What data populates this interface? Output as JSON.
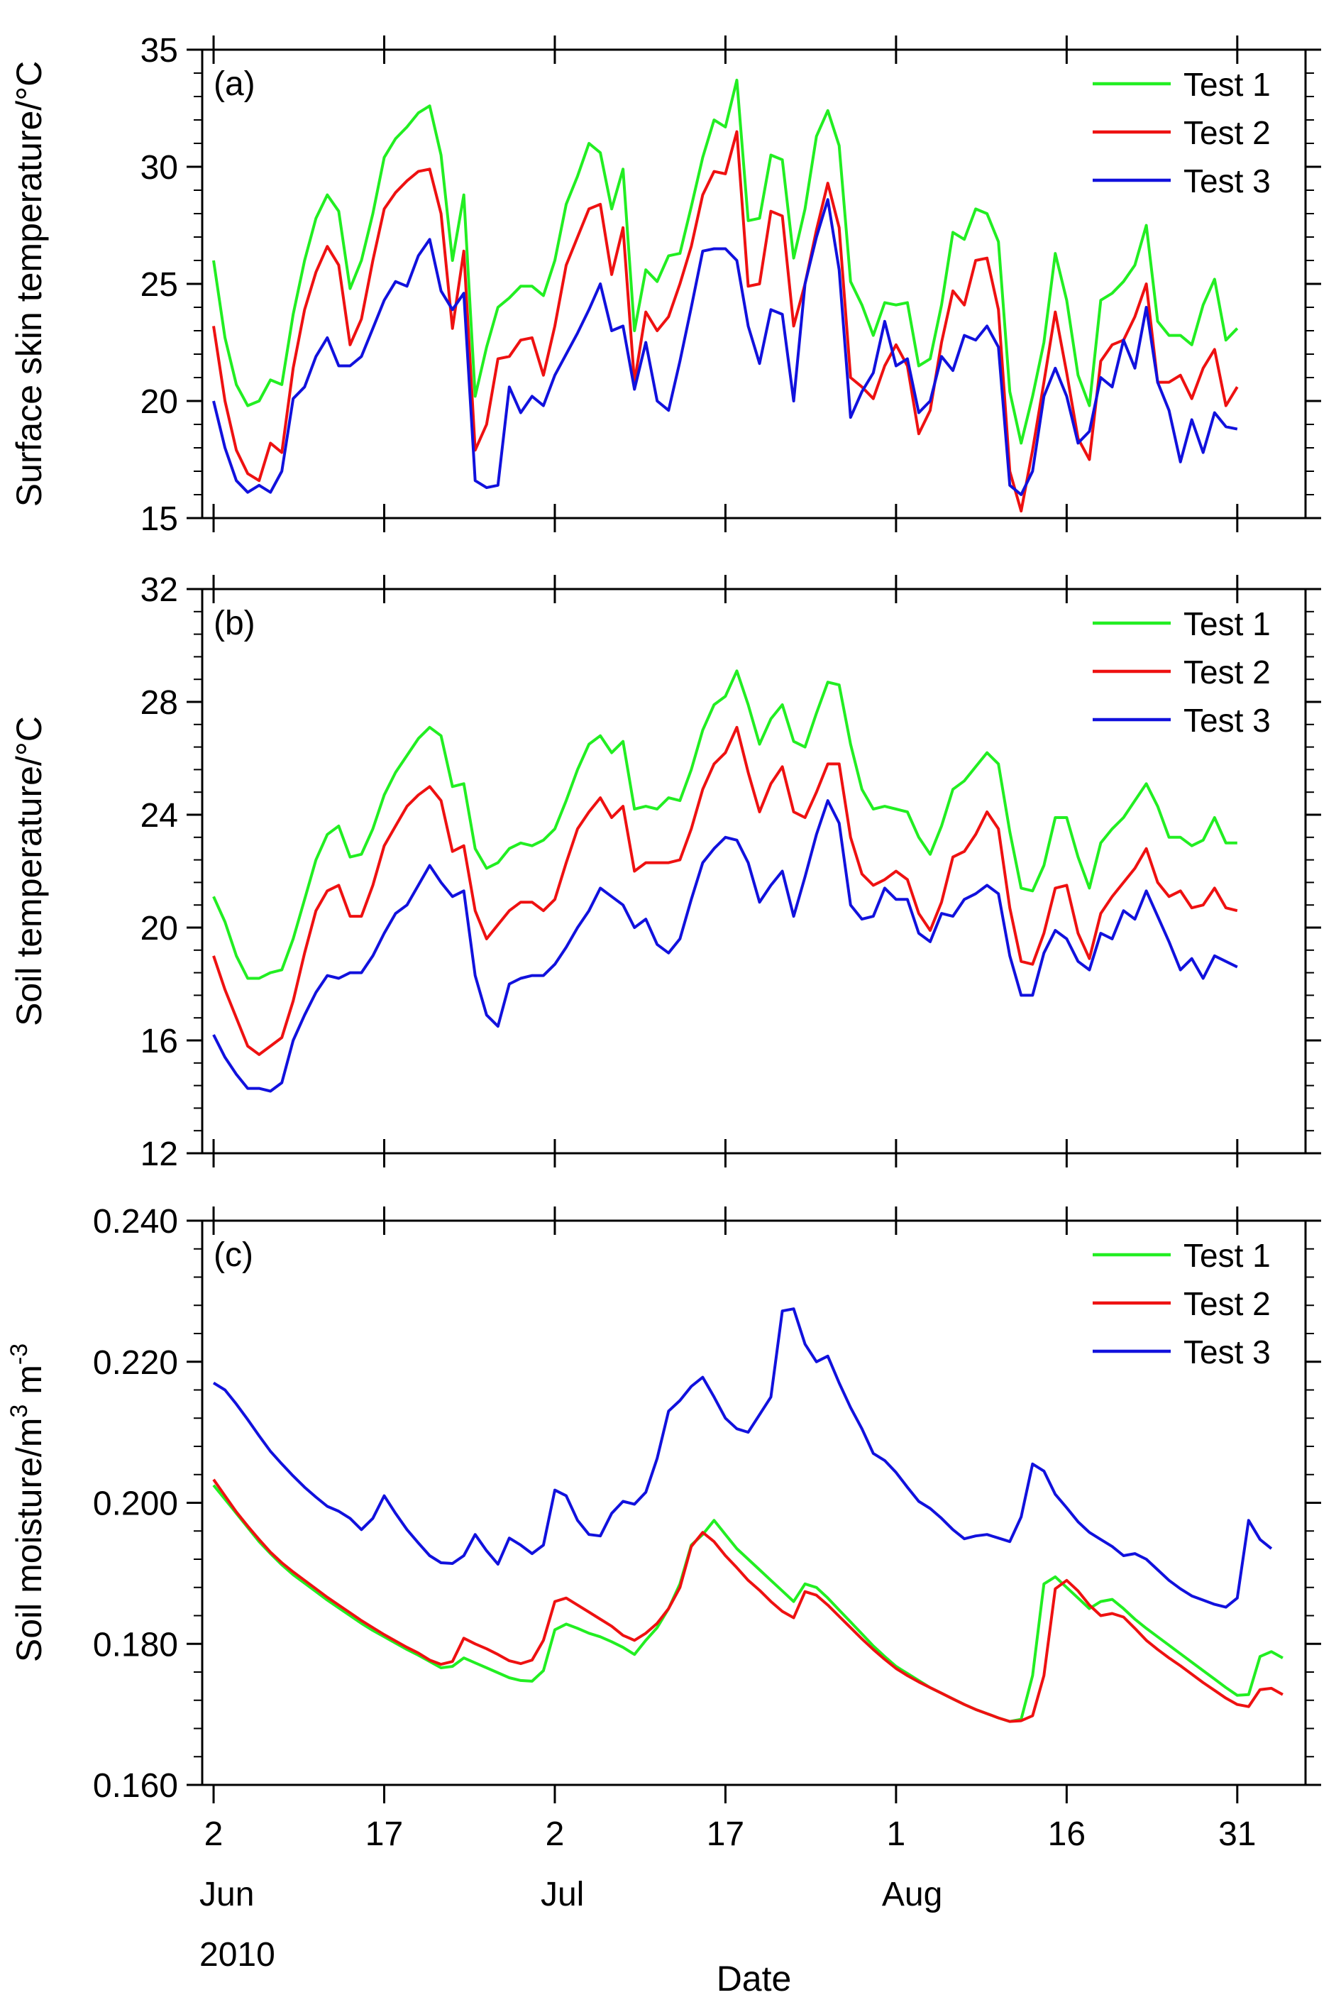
{
  "figure": {
    "xlabel": "Date",
    "x_ticks": [
      {
        "day": 0,
        "label": "2",
        "sub1": "Jun",
        "sub2": "2010"
      },
      {
        "day": 15,
        "label": "17",
        "sub1": "",
        "sub2": ""
      },
      {
        "day": 30,
        "label": "2",
        "sub1": "Jul",
        "sub2": ""
      },
      {
        "day": 45,
        "label": "17",
        "sub1": "",
        "sub2": ""
      },
      {
        "day": 60,
        "label": "1",
        "sub1": "Aug",
        "sub2": ""
      },
      {
        "day": 75,
        "label": "16",
        "sub1": "",
        "sub2": ""
      },
      {
        "day": 90,
        "label": "31",
        "sub1": "",
        "sub2": ""
      }
    ],
    "colors": {
      "Test 1": "#22ee22",
      "Test 2": "#ee1111",
      "Test 3": "#1111dd"
    }
  },
  "chart_data": [
    {
      "type": "line",
      "panel_label": "(a)",
      "ylabel": "Surface skin temperature/°C",
      "ylim": [
        15,
        35
      ],
      "yticks": [
        15,
        20,
        25,
        30,
        35
      ],
      "ytick_labels": [
        "15",
        "20",
        "25",
        "30",
        "35"
      ],
      "xlim": [
        -1,
        96
      ],
      "legend": "top-right",
      "series": [
        {
          "name": "Test 1",
          "values": [
            26.0,
            22.7,
            20.7,
            19.8,
            20.0,
            20.9,
            20.7,
            23.7,
            26.0,
            27.8,
            28.8,
            28.1,
            24.8,
            26.0,
            28.0,
            30.4,
            31.2,
            31.7,
            32.3,
            32.6,
            30.5,
            26.0,
            28.8,
            20.2,
            22.3,
            24.0,
            24.4,
            24.9,
            24.9,
            24.5,
            26.0,
            28.4,
            29.6,
            31.0,
            30.6,
            28.2,
            29.9,
            23.0,
            25.6,
            25.1,
            26.2,
            26.3,
            28.3,
            30.4,
            32.0,
            31.7,
            33.7,
            27.7,
            27.8,
            30.5,
            30.3,
            26.1,
            28.2,
            31.3,
            32.4,
            30.9,
            25.1,
            24.1,
            22.8,
            24.2,
            24.1,
            24.2,
            21.5,
            21.8,
            24.1,
            27.2,
            26.9,
            28.2,
            28.0,
            26.8,
            20.4,
            18.2,
            20.2,
            22.5,
            26.3,
            24.3,
            21.1,
            19.8,
            24.3,
            24.6,
            25.1,
            25.8,
            27.5,
            23.4,
            22.8,
            22.8,
            22.4,
            24.1,
            25.2,
            22.6,
            23.1
          ]
        },
        {
          "name": "Test 2",
          "values": [
            23.2,
            20.0,
            17.9,
            16.9,
            16.6,
            18.2,
            17.8,
            21.4,
            23.9,
            25.5,
            26.6,
            25.8,
            22.4,
            23.5,
            26.0,
            28.2,
            28.9,
            29.4,
            29.8,
            29.9,
            28.0,
            23.1,
            26.4,
            17.9,
            19.0,
            21.8,
            21.9,
            22.6,
            22.7,
            21.1,
            23.2,
            25.8,
            27.0,
            28.2,
            28.4,
            25.4,
            27.4,
            20.8,
            23.8,
            23.0,
            23.6,
            25.0,
            26.6,
            28.8,
            29.8,
            29.7,
            31.5,
            24.9,
            25.0,
            28.1,
            27.9,
            23.2,
            25.0,
            27.3,
            29.3,
            27.4,
            21.0,
            20.6,
            20.1,
            21.5,
            22.4,
            21.5,
            18.6,
            19.6,
            22.5,
            24.7,
            24.1,
            26.0,
            26.1,
            23.9,
            17.0,
            15.3,
            17.9,
            20.8,
            23.8,
            21.2,
            18.4,
            17.5,
            21.7,
            22.4,
            22.6,
            23.6,
            25.0,
            20.8,
            20.8,
            21.1,
            20.1,
            21.4,
            22.2,
            19.8,
            20.6
          ]
        },
        {
          "name": "Test 3",
          "values": [
            20.0,
            18.0,
            16.6,
            16.1,
            16.4,
            16.1,
            17.0,
            20.1,
            20.6,
            21.9,
            22.7,
            21.5,
            21.5,
            21.9,
            23.1,
            24.3,
            25.1,
            24.9,
            26.2,
            26.9,
            24.7,
            23.9,
            24.6,
            16.6,
            16.3,
            16.4,
            20.6,
            19.5,
            20.2,
            19.8,
            21.1,
            22.0,
            22.9,
            23.9,
            25.0,
            23.0,
            23.2,
            20.5,
            22.5,
            20.0,
            19.6,
            21.7,
            24.0,
            26.4,
            26.5,
            26.5,
            26.0,
            23.2,
            21.6,
            23.9,
            23.7,
            20.0,
            25.0,
            27.0,
            28.6,
            25.6,
            19.3,
            20.4,
            21.2,
            23.4,
            21.5,
            21.8,
            19.5,
            20.0,
            21.9,
            21.3,
            22.8,
            22.6,
            23.2,
            22.3,
            16.4,
            16.0,
            17.0,
            20.2,
            21.4,
            20.2,
            18.2,
            18.7,
            21.0,
            20.6,
            22.6,
            21.4,
            24.0,
            20.8,
            19.6,
            17.4,
            19.2,
            17.8,
            19.5,
            18.9,
            18.8
          ]
        }
      ]
    },
    {
      "type": "line",
      "panel_label": "(b)",
      "ylabel": "Soil temperature/°C",
      "ylim": [
        12,
        32
      ],
      "yticks": [
        12,
        16,
        20,
        24,
        28,
        32
      ],
      "ytick_labels": [
        "12",
        "16",
        "20",
        "24",
        "28",
        "32"
      ],
      "xlim": [
        -1,
        96
      ],
      "legend": "top-right",
      "series": [
        {
          "name": "Test 1",
          "values": [
            21.1,
            20.2,
            19.0,
            18.2,
            18.2,
            18.4,
            18.5,
            19.6,
            21.0,
            22.4,
            23.3,
            23.6,
            22.5,
            22.6,
            23.5,
            24.7,
            25.5,
            26.1,
            26.7,
            27.1,
            26.8,
            25.0,
            25.1,
            22.8,
            22.1,
            22.3,
            22.8,
            23.0,
            22.9,
            23.1,
            23.5,
            24.5,
            25.6,
            26.5,
            26.8,
            26.2,
            26.6,
            24.2,
            24.3,
            24.2,
            24.6,
            24.5,
            25.6,
            27.0,
            27.9,
            28.2,
            29.1,
            27.9,
            26.5,
            27.4,
            27.9,
            26.6,
            26.4,
            27.6,
            28.7,
            28.6,
            26.5,
            24.9,
            24.2,
            24.3,
            24.2,
            24.1,
            23.2,
            22.6,
            23.6,
            24.9,
            25.2,
            25.7,
            26.2,
            25.8,
            23.4,
            21.4,
            21.3,
            22.2,
            23.9,
            23.9,
            22.5,
            21.4,
            23.0,
            23.5,
            23.9,
            24.5,
            25.1,
            24.3,
            23.2,
            23.2,
            22.9,
            23.1,
            23.9,
            23.0,
            23.0
          ]
        },
        {
          "name": "Test 2",
          "values": [
            19.0,
            17.8,
            16.8,
            15.8,
            15.5,
            15.8,
            16.1,
            17.4,
            19.1,
            20.6,
            21.3,
            21.5,
            20.4,
            20.4,
            21.5,
            22.9,
            23.6,
            24.3,
            24.7,
            25.0,
            24.5,
            22.7,
            22.9,
            20.6,
            19.6,
            20.1,
            20.6,
            20.9,
            20.9,
            20.6,
            21.0,
            22.3,
            23.5,
            24.1,
            24.6,
            23.9,
            24.3,
            22.0,
            22.3,
            22.3,
            22.3,
            22.4,
            23.5,
            24.9,
            25.8,
            26.2,
            27.1,
            25.5,
            24.1,
            25.1,
            25.7,
            24.1,
            23.9,
            24.8,
            25.8,
            25.8,
            23.2,
            21.9,
            21.5,
            21.7,
            22.0,
            21.7,
            20.5,
            19.9,
            20.9,
            22.5,
            22.7,
            23.3,
            24.1,
            23.5,
            20.7,
            18.8,
            18.7,
            19.8,
            21.4,
            21.5,
            19.8,
            18.9,
            20.5,
            21.1,
            21.6,
            22.1,
            22.8,
            21.6,
            21.1,
            21.3,
            20.7,
            20.8,
            21.4,
            20.7,
            20.6
          ]
        },
        {
          "name": "Test 3",
          "values": [
            16.2,
            15.4,
            14.8,
            14.3,
            14.3,
            14.2,
            14.5,
            16.0,
            16.9,
            17.7,
            18.3,
            18.2,
            18.4,
            18.4,
            19.0,
            19.8,
            20.5,
            20.8,
            21.5,
            22.2,
            21.6,
            21.1,
            21.3,
            18.3,
            16.9,
            16.5,
            18.0,
            18.2,
            18.3,
            18.3,
            18.7,
            19.3,
            20.0,
            20.6,
            21.4,
            21.1,
            20.8,
            20.0,
            20.3,
            19.4,
            19.1,
            19.6,
            21.0,
            22.3,
            22.8,
            23.2,
            23.1,
            22.3,
            20.9,
            21.5,
            22.0,
            20.4,
            21.8,
            23.3,
            24.5,
            23.7,
            20.8,
            20.3,
            20.4,
            21.4,
            21.0,
            21.0,
            19.8,
            19.5,
            20.5,
            20.4,
            21.0,
            21.2,
            21.5,
            21.2,
            19.0,
            17.6,
            17.6,
            19.1,
            19.9,
            19.6,
            18.8,
            18.5,
            19.8,
            19.6,
            20.6,
            20.3,
            21.3,
            20.4,
            19.5,
            18.5,
            18.9,
            18.2,
            19.0,
            18.8,
            18.6
          ]
        }
      ]
    },
    {
      "type": "line",
      "panel_label": "(c)",
      "ylabel": "Soil moisture/m³ m⁻³",
      "ylim": [
        0.16,
        0.24
      ],
      "yticks": [
        0.16,
        0.18,
        0.2,
        0.22,
        0.24
      ],
      "ytick_labels": [
        "0.160",
        "0.180",
        "0.200",
        "0.220",
        "0.240"
      ],
      "xlim": [
        -1,
        96
      ],
      "legend": "top-right",
      "series": [
        {
          "name": "Test 1",
          "values": [
            0.2025,
            0.2005,
            0.1985,
            0.1965,
            0.1945,
            0.1928,
            0.1912,
            0.1898,
            0.1886,
            0.1874,
            0.1862,
            0.1851,
            0.184,
            0.1829,
            0.1819,
            0.181,
            0.1801,
            0.1792,
            0.1784,
            0.1775,
            0.1766,
            0.1768,
            0.178,
            0.1773,
            0.1766,
            0.1759,
            0.1752,
            0.1748,
            0.1747,
            0.1762,
            0.182,
            0.1828,
            0.1822,
            0.1815,
            0.181,
            0.1803,
            0.1795,
            0.1785,
            0.1805,
            0.1823,
            0.185,
            0.1885,
            0.194,
            0.1955,
            0.1975,
            0.1955,
            0.1935,
            0.192,
            0.1905,
            0.189,
            0.1875,
            0.186,
            0.1885,
            0.188,
            0.1865,
            0.1848,
            0.1831,
            0.1814,
            0.1797,
            0.1782,
            0.1768,
            0.1758,
            0.1748,
            0.1738,
            0.173,
            0.1722,
            0.1714,
            0.1707,
            0.1701,
            0.1695,
            0.169,
            0.1693,
            0.1755,
            0.1885,
            0.1895,
            0.188,
            0.1865,
            0.185,
            0.186,
            0.1863,
            0.185,
            0.1835,
            0.1822,
            0.181,
            0.1798,
            0.1786,
            0.1774,
            0.1762,
            0.175,
            0.1738,
            0.1727,
            0.1728,
            0.1782,
            0.1789,
            0.178
          ]
        },
        {
          "name": "Test 2",
          "values": [
            0.2033,
            0.201,
            0.1987,
            0.1967,
            0.1948,
            0.193,
            0.1915,
            0.1902,
            0.189,
            0.1878,
            0.1866,
            0.1855,
            0.1844,
            0.1833,
            0.1823,
            0.1813,
            0.1804,
            0.1795,
            0.1787,
            0.1777,
            0.1771,
            0.1775,
            0.1808,
            0.18,
            0.1793,
            0.1785,
            0.1776,
            0.1772,
            0.1777,
            0.1805,
            0.186,
            0.1865,
            0.1855,
            0.1845,
            0.1835,
            0.1825,
            0.1812,
            0.1805,
            0.1815,
            0.1829,
            0.185,
            0.188,
            0.1938,
            0.1958,
            0.1945,
            0.1925,
            0.1908,
            0.189,
            0.1876,
            0.186,
            0.1846,
            0.1837,
            0.1874,
            0.1869,
            0.1855,
            0.1839,
            0.1823,
            0.1807,
            0.1792,
            0.1778,
            0.1765,
            0.1755,
            0.1746,
            0.1738,
            0.173,
            0.1722,
            0.1714,
            0.1707,
            0.1701,
            0.1695,
            0.169,
            0.1691,
            0.1698,
            0.1755,
            0.1878,
            0.189,
            0.1875,
            0.1855,
            0.184,
            0.1843,
            0.1838,
            0.1822,
            0.1805,
            0.1792,
            0.178,
            0.1769,
            0.1757,
            0.1745,
            0.1734,
            0.1723,
            0.1714,
            0.1711,
            0.1735,
            0.1737,
            0.1728
          ]
        },
        {
          "name": "Test 3",
          "values": [
            0.217,
            0.216,
            0.214,
            0.2118,
            0.2095,
            0.2073,
            0.2055,
            0.2038,
            0.2022,
            0.2008,
            0.1995,
            0.1988,
            0.1978,
            0.1962,
            0.1978,
            0.201,
            0.1985,
            0.1962,
            0.1943,
            0.1925,
            0.1915,
            0.1914,
            0.1925,
            0.1955,
            0.1932,
            0.1913,
            0.195,
            0.194,
            0.1928,
            0.194,
            0.2018,
            0.201,
            0.1975,
            0.1955,
            0.1953,
            0.1985,
            0.2002,
            0.1998,
            0.2015,
            0.2063,
            0.213,
            0.2145,
            0.2165,
            0.2178,
            0.215,
            0.212,
            0.2105,
            0.21,
            0.2125,
            0.215,
            0.2272,
            0.2275,
            0.2225,
            0.22,
            0.2208,
            0.217,
            0.2135,
            0.2105,
            0.207,
            0.206,
            0.2043,
            0.2022,
            0.2002,
            0.1992,
            0.1978,
            0.1962,
            0.1949,
            0.1953,
            0.1955,
            0.195,
            0.1945,
            0.198,
            0.2055,
            0.2045,
            0.2012,
            0.1993,
            0.1973,
            0.1958,
            0.1948,
            0.1938,
            0.1925,
            0.1928,
            0.192,
            0.1905,
            0.189,
            0.1878,
            0.1868,
            0.1862,
            0.1856,
            0.1852,
            0.1865,
            0.1975,
            0.1948,
            0.1935
          ]
        }
      ]
    }
  ]
}
